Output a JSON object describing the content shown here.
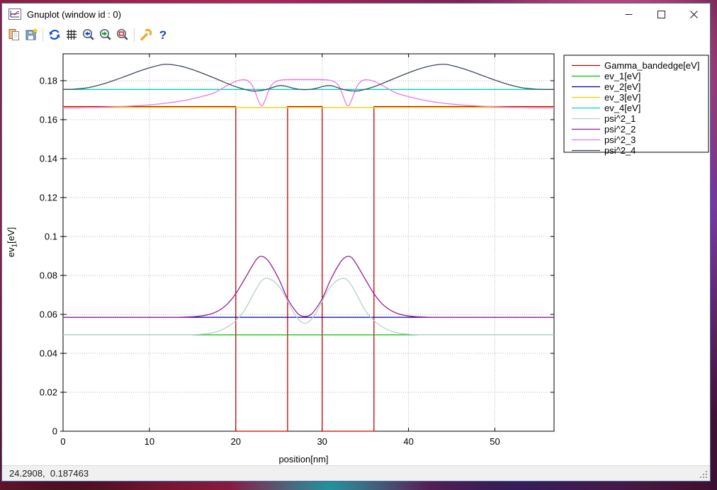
{
  "window": {
    "title": "Gnuplot (window id : 0)",
    "icon": "gnuplot-logo-icon",
    "controls": [
      {
        "name": "minimize",
        "icon": "minimize-icon"
      },
      {
        "name": "maximize",
        "icon": "maximize-icon"
      },
      {
        "name": "close",
        "icon": "close-icon"
      }
    ]
  },
  "toolbar": {
    "buttons": [
      {
        "name": "copy-to-clipboard",
        "icon": "copy-icon"
      },
      {
        "name": "save",
        "icon": "save-icon"
      },
      {
        "name": "replot",
        "icon": "refresh-icon"
      },
      {
        "name": "toggle-grid",
        "icon": "grid-icon"
      },
      {
        "name": "previous-zoom",
        "icon": "zoom-previous-icon"
      },
      {
        "name": "next-zoom",
        "icon": "zoom-next-icon"
      },
      {
        "name": "unzoom",
        "icon": "unzoom-icon"
      },
      {
        "name": "options",
        "icon": "wrench-icon"
      },
      {
        "name": "help",
        "icon": "help-icon"
      }
    ]
  },
  "statusbar": {
    "coordinates": "24.2908,  0.187463"
  },
  "chart_data": {
    "type": "line",
    "title": "",
    "xlabel": "position[nm]",
    "ylabel": "ev_1[eV]",
    "ylabel_parts": {
      "base": "ev",
      "sub": "1",
      "unit": "[eV]"
    },
    "xlim": [
      0,
      56.85
    ],
    "ylim": [
      0,
      0.1938
    ],
    "grid": true,
    "legend_position": "outside-top-right",
    "xticks": [
      {
        "v": 0,
        "label": "0"
      },
      {
        "v": 10,
        "label": "10"
      },
      {
        "v": 20,
        "label": "20"
      },
      {
        "v": 30,
        "label": "30"
      },
      {
        "v": 40,
        "label": "40"
      },
      {
        "v": 50,
        "label": "50"
      }
    ],
    "yticks": [
      {
        "v": 0,
        "label": "0"
      },
      {
        "v": 0.02,
        "label": "0.02"
      },
      {
        "v": 0.04,
        "label": "0.04"
      },
      {
        "v": 0.06,
        "label": "0.06"
      },
      {
        "v": 0.08,
        "label": "0.08"
      },
      {
        "v": 0.1,
        "label": "0.1"
      },
      {
        "v": 0.12,
        "label": "0.12"
      },
      {
        "v": 0.14,
        "label": "0.14"
      },
      {
        "v": 0.16,
        "label": "0.16"
      },
      {
        "v": 0.18,
        "label": "0.18"
      }
    ],
    "series": [
      {
        "name": "Gamma_bandedge[eV]",
        "color": "#c80000",
        "smooth": false,
        "points": [
          [
            0,
            0.1667
          ],
          [
            20,
            0.1667
          ],
          [
            20,
            0
          ],
          [
            26,
            0
          ],
          [
            26,
            0.1667
          ],
          [
            30,
            0.1667
          ],
          [
            30,
            0
          ],
          [
            36,
            0
          ],
          [
            36,
            0.1667
          ],
          [
            56.85,
            0.1667
          ]
        ]
      },
      {
        "name": "ev_1[eV]",
        "color": "#00c000",
        "smooth": false,
        "points": [
          [
            0,
            0.0495
          ],
          [
            56.85,
            0.0495
          ]
        ]
      },
      {
        "name": "ev_2[eV]",
        "color": "#0000a0",
        "smooth": false,
        "points": [
          [
            0,
            0.0585
          ],
          [
            56.85,
            0.0585
          ]
        ]
      },
      {
        "name": "ev_3[eV]",
        "color": "#e6d400",
        "smooth": false,
        "points": [
          [
            0,
            0.16625
          ],
          [
            56.85,
            0.16625
          ]
        ]
      },
      {
        "name": "ev_4[eV]",
        "color": "#00d0d0",
        "smooth": false,
        "points": [
          [
            0,
            0.1755
          ],
          [
            56.85,
            0.1755
          ]
        ]
      },
      {
        "name": "psi^2_1",
        "color": "#b8cfd2",
        "smooth": true,
        "points": [
          [
            0,
            0.0495
          ],
          [
            8,
            0.0495
          ],
          [
            14,
            0.0495
          ],
          [
            15,
            0.0496
          ],
          [
            16,
            0.0498
          ],
          [
            17,
            0.0503
          ],
          [
            18,
            0.0514
          ],
          [
            19,
            0.0535
          ],
          [
            20,
            0.0568
          ],
          [
            21,
            0.062
          ],
          [
            22,
            0.0701
          ],
          [
            22.8,
            0.0762
          ],
          [
            23.4,
            0.0785
          ],
          [
            24,
            0.078
          ],
          [
            24.6,
            0.0762
          ],
          [
            25.4,
            0.0718
          ],
          [
            26.4,
            0.0633
          ],
          [
            27.2,
            0.0577
          ],
          [
            27.7,
            0.0558
          ],
          [
            28,
            0.0553
          ],
          [
            28.3,
            0.0558
          ],
          [
            28.8,
            0.0577
          ],
          [
            29.6,
            0.0633
          ],
          [
            30.6,
            0.0718
          ],
          [
            31.4,
            0.0762
          ],
          [
            32,
            0.078
          ],
          [
            32.6,
            0.0785
          ],
          [
            33.2,
            0.0762
          ],
          [
            34,
            0.0701
          ],
          [
            35,
            0.062
          ],
          [
            36,
            0.0568
          ],
          [
            37,
            0.0535
          ],
          [
            38,
            0.0514
          ],
          [
            39,
            0.0503
          ],
          [
            40,
            0.0498
          ],
          [
            41,
            0.0496
          ],
          [
            42,
            0.0495
          ],
          [
            48,
            0.0495
          ],
          [
            56.85,
            0.0495
          ]
        ]
      },
      {
        "name": "psi^2_2",
        "color": "#942191",
        "smooth": true,
        "points": [
          [
            0,
            0.0585
          ],
          [
            8,
            0.0585
          ],
          [
            13,
            0.0585
          ],
          [
            14,
            0.0586
          ],
          [
            15,
            0.0588
          ],
          [
            16,
            0.0592
          ],
          [
            17,
            0.0601
          ],
          [
            18,
            0.0619
          ],
          [
            19,
            0.0652
          ],
          [
            20,
            0.0706
          ],
          [
            21,
            0.078
          ],
          [
            22,
            0.0856
          ],
          [
            22.5,
            0.0888
          ],
          [
            22.9,
            0.0898
          ],
          [
            23.4,
            0.0891
          ],
          [
            24,
            0.086
          ],
          [
            25,
            0.078
          ],
          [
            26,
            0.068
          ],
          [
            27,
            0.0613
          ],
          [
            27.5,
            0.0594
          ],
          [
            28,
            0.0589
          ],
          [
            28.5,
            0.0594
          ],
          [
            29,
            0.0613
          ],
          [
            30,
            0.068
          ],
          [
            31,
            0.078
          ],
          [
            32,
            0.086
          ],
          [
            32.6,
            0.0891
          ],
          [
            33.1,
            0.0898
          ],
          [
            33.5,
            0.0888
          ],
          [
            34,
            0.0856
          ],
          [
            35,
            0.078
          ],
          [
            36,
            0.0706
          ],
          [
            37,
            0.0652
          ],
          [
            38,
            0.0619
          ],
          [
            39,
            0.0601
          ],
          [
            40,
            0.0592
          ],
          [
            41,
            0.0588
          ],
          [
            42,
            0.0586
          ],
          [
            43,
            0.0585
          ],
          [
            50,
            0.0585
          ],
          [
            56.85,
            0.0585
          ]
        ]
      },
      {
        "name": "psi^2_3",
        "color": "#e878e8",
        "smooth": true,
        "points": [
          [
            0,
            0.166
          ],
          [
            2,
            0.1661
          ],
          [
            4,
            0.1663
          ],
          [
            6,
            0.1666
          ],
          [
            8,
            0.167
          ],
          [
            10,
            0.1676
          ],
          [
            12,
            0.1685
          ],
          [
            14,
            0.1698
          ],
          [
            16,
            0.1718
          ],
          [
            17.5,
            0.1738
          ],
          [
            19,
            0.1775
          ],
          [
            20,
            0.1797
          ],
          [
            20.8,
            0.1805
          ],
          [
            21.4,
            0.1799
          ],
          [
            22,
            0.1768
          ],
          [
            22.7,
            0.1689
          ],
          [
            23,
            0.1672
          ],
          [
            23.3,
            0.1689
          ],
          [
            24,
            0.1768
          ],
          [
            24.7,
            0.1797
          ],
          [
            25.6,
            0.1805
          ],
          [
            27,
            0.1806
          ],
          [
            28,
            0.1806
          ],
          [
            29,
            0.1806
          ],
          [
            30.4,
            0.1805
          ],
          [
            31.3,
            0.1797
          ],
          [
            32,
            0.1768
          ],
          [
            32.7,
            0.1689
          ],
          [
            33,
            0.1672
          ],
          [
            33.3,
            0.1689
          ],
          [
            34,
            0.1768
          ],
          [
            34.6,
            0.1799
          ],
          [
            35.2,
            0.1805
          ],
          [
            36,
            0.1797
          ],
          [
            37,
            0.1775
          ],
          [
            38.5,
            0.1738
          ],
          [
            40,
            0.1718
          ],
          [
            42,
            0.1698
          ],
          [
            44,
            0.1685
          ],
          [
            46,
            0.1676
          ],
          [
            48,
            0.167
          ],
          [
            50,
            0.1666
          ],
          [
            52,
            0.1663
          ],
          [
            54,
            0.1661
          ],
          [
            56.85,
            0.166
          ]
        ]
      },
      {
        "name": "psi^2_4",
        "color": "#3e4a5a",
        "smooth": true,
        "points": [
          [
            0,
            0.1755
          ],
          [
            1,
            0.1756
          ],
          [
            2,
            0.1759
          ],
          [
            3,
            0.1765
          ],
          [
            4,
            0.1775
          ],
          [
            5,
            0.1788
          ],
          [
            6,
            0.1803
          ],
          [
            7,
            0.1819
          ],
          [
            8,
            0.1836
          ],
          [
            9,
            0.1852
          ],
          [
            10,
            0.1866
          ],
          [
            11,
            0.1878
          ],
          [
            11.7,
            0.1884
          ],
          [
            12.5,
            0.1883
          ],
          [
            13.5,
            0.1876
          ],
          [
            14.5,
            0.1864
          ],
          [
            15.5,
            0.1849
          ],
          [
            17,
            0.1823
          ],
          [
            18,
            0.1805
          ],
          [
            19,
            0.1786
          ],
          [
            20,
            0.1769
          ],
          [
            21,
            0.1756
          ],
          [
            21.8,
            0.1748
          ],
          [
            22.4,
            0.1747
          ],
          [
            23,
            0.175
          ],
          [
            23.8,
            0.1758
          ],
          [
            24.7,
            0.1772
          ],
          [
            25.2,
            0.1775
          ],
          [
            25.8,
            0.1772
          ],
          [
            26.6,
            0.1762
          ],
          [
            27.3,
            0.1756
          ],
          [
            28,
            0.1754
          ],
          [
            28.7,
            0.1756
          ],
          [
            29.4,
            0.1762
          ],
          [
            30.2,
            0.1772
          ],
          [
            30.8,
            0.1775
          ],
          [
            31.3,
            0.1772
          ],
          [
            32.2,
            0.1758
          ],
          [
            33,
            0.175
          ],
          [
            33.6,
            0.1747
          ],
          [
            34.2,
            0.1748
          ],
          [
            35,
            0.1756
          ],
          [
            36,
            0.1769
          ],
          [
            37,
            0.1786
          ],
          [
            38,
            0.1805
          ],
          [
            39,
            0.1823
          ],
          [
            40.5,
            0.1849
          ],
          [
            41.5,
            0.1864
          ],
          [
            42.5,
            0.1876
          ],
          [
            43.5,
            0.1883
          ],
          [
            44.3,
            0.1884
          ],
          [
            45,
            0.1878
          ],
          [
            46,
            0.1866
          ],
          [
            47,
            0.1852
          ],
          [
            48,
            0.1836
          ],
          [
            49,
            0.1819
          ],
          [
            50,
            0.1803
          ],
          [
            51,
            0.1788
          ],
          [
            52,
            0.1775
          ],
          [
            53,
            0.1765
          ],
          [
            54,
            0.1759
          ],
          [
            55,
            0.1756
          ],
          [
            56,
            0.1755
          ],
          [
            56.85,
            0.1755
          ]
        ]
      }
    ]
  }
}
